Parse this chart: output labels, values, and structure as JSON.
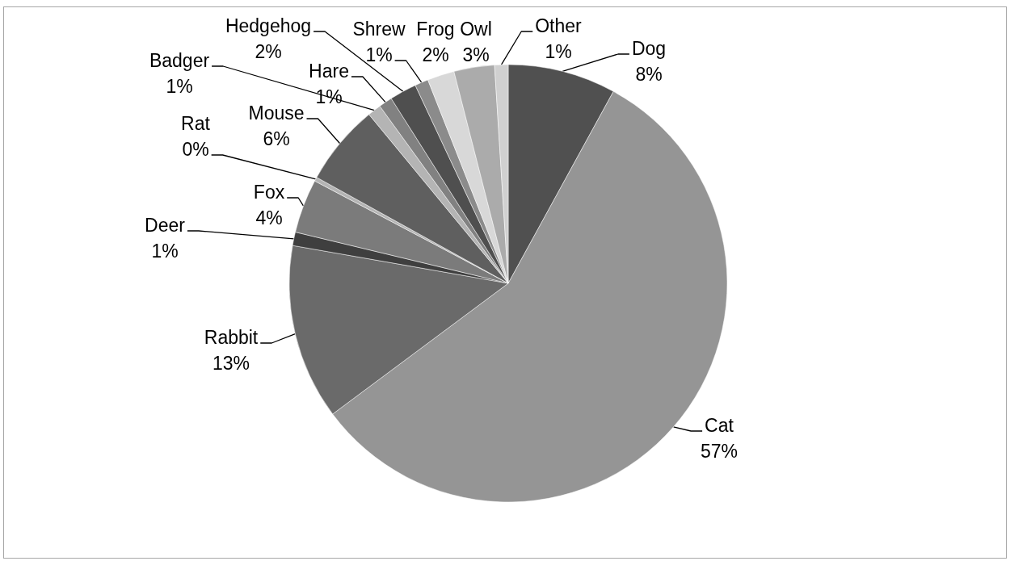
{
  "chart_data": {
    "type": "pie",
    "categories": [
      "Dog",
      "Cat",
      "Rabbit",
      "Deer",
      "Fox",
      "Rat",
      "Mouse",
      "Badger",
      "Hare",
      "Hedgehog",
      "Shrew",
      "Frog",
      "Owl",
      "Other"
    ],
    "values": [
      8,
      57,
      13,
      1,
      4,
      0.3,
      6,
      1,
      1,
      2,
      1,
      2,
      3,
      1
    ],
    "value_labels": [
      "8%",
      "57%",
      "13%",
      "1%",
      "4%",
      "0%",
      "6%",
      "1%",
      "1%",
      "2%",
      "1%",
      "2%",
      "3%",
      "1%"
    ],
    "colors": [
      "#505050",
      "#959595",
      "#6a6a6a",
      "#3f3f3f",
      "#7b7b7b",
      "#b4b4b4",
      "#5f5f5f",
      "#b4b4b4",
      "#818181",
      "#4f4f4f",
      "#8b8b8b",
      "#d8d8d8",
      "#ababab",
      "#d0d0d0"
    ]
  }
}
